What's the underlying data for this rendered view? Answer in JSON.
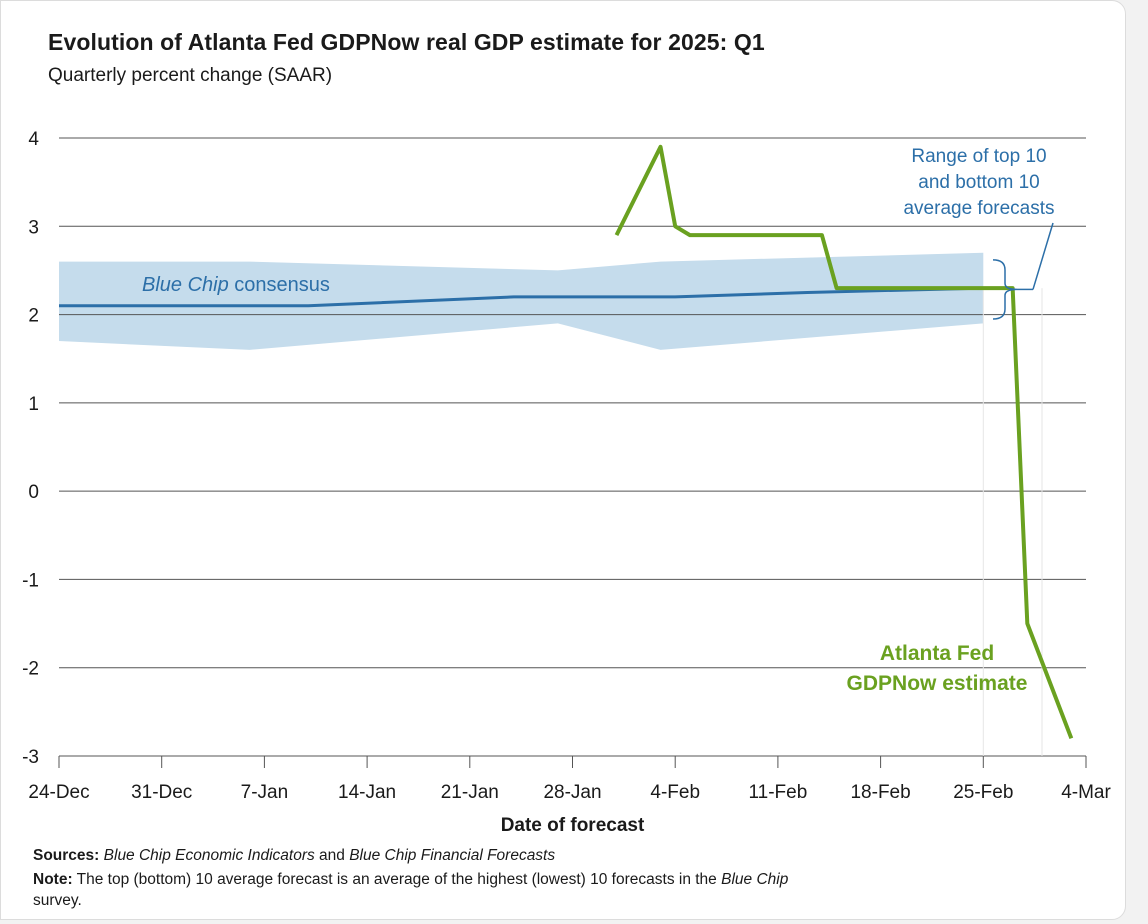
{
  "chart_data": {
    "type": "line",
    "title": "Evolution of Atlanta Fed GDPNow real GDP estimate for 2025: Q1",
    "subtitle": "Quarterly percent change (SAAR)",
    "xlabel": "Date of forecast",
    "ylabel": "",
    "ylim": [
      -3,
      4
    ],
    "yticks": [
      "4",
      "3",
      "2",
      "1",
      "0",
      "-1",
      "-2",
      "-3"
    ],
    "yticks_values": [
      4,
      3,
      2,
      1,
      0,
      -1,
      -2,
      -3
    ],
    "x_tick_labels": [
      "24-Dec",
      "31-Dec",
      "7-Jan",
      "14-Jan",
      "21-Jan",
      "28-Jan",
      "4-Feb",
      "11-Feb",
      "18-Feb",
      "25-Feb",
      "4-Mar"
    ],
    "x_tick_dates": [
      "2024-12-24",
      "2024-12-31",
      "2025-01-07",
      "2025-01-14",
      "2025-01-21",
      "2025-01-28",
      "2025-02-04",
      "2025-02-11",
      "2025-02-18",
      "2025-02-25",
      "2025-03-04"
    ],
    "grid": true,
    "colors": {
      "gdpnow": "#6aa120",
      "consensus": "#2c6fa8",
      "range": "#c5dcec",
      "grid": "#555555",
      "annotation_range": "#2c6fa8",
      "annotation_gdpnow": "#6aa120"
    },
    "series": [
      {
        "name": "Atlanta Fed GDPNow estimate",
        "x": [
          "2025-01-31",
          "2025-02-03",
          "2025-02-04",
          "2025-02-05",
          "2025-02-14",
          "2025-02-15",
          "2025-02-26",
          "2025-02-27",
          "2025-02-28",
          "2025-03-03"
        ],
        "y": [
          2.9,
          3.9,
          3.0,
          2.9,
          2.9,
          2.3,
          2.3,
          2.3,
          -1.5,
          -2.8
        ]
      },
      {
        "name": "Blue Chip consensus",
        "x": [
          "2024-12-24",
          "2025-01-10",
          "2025-01-24",
          "2025-02-04",
          "2025-02-13",
          "2025-02-25"
        ],
        "y": [
          2.1,
          2.1,
          2.2,
          2.2,
          2.25,
          2.3
        ]
      },
      {
        "name": "Range of top 10 and bottom 10 average forecasts",
        "x": [
          "2024-12-24",
          "2025-01-06",
          "2025-01-27",
          "2025-02-03",
          "2025-02-25"
        ],
        "upper": [
          2.6,
          2.6,
          2.5,
          2.6,
          2.7
        ],
        "lower": [
          1.7,
          1.6,
          1.9,
          1.6,
          1.9
        ]
      }
    ],
    "annotations": {
      "range_label": [
        "Range of top 10",
        "and bottom 10",
        "average forecasts"
      ],
      "consensus_label_italic": "Blue Chip",
      "consensus_label_rest": " consensus",
      "gdpnow_label": [
        "Atlanta Fed",
        "GDPNow estimate"
      ]
    }
  },
  "footer": {
    "sources_label": "Sources:",
    "sources_text_1": "Blue Chip Economic Indicators",
    "sources_and": " and ",
    "sources_text_2": "Blue Chip Financial Forecasts",
    "note_label": "Note:",
    "note_text": " The top (bottom) 10 average forecast is an average of the highest (lowest) 10 forecasts in the ",
    "note_italic": "Blue Chip",
    "note_line2": "survey."
  }
}
